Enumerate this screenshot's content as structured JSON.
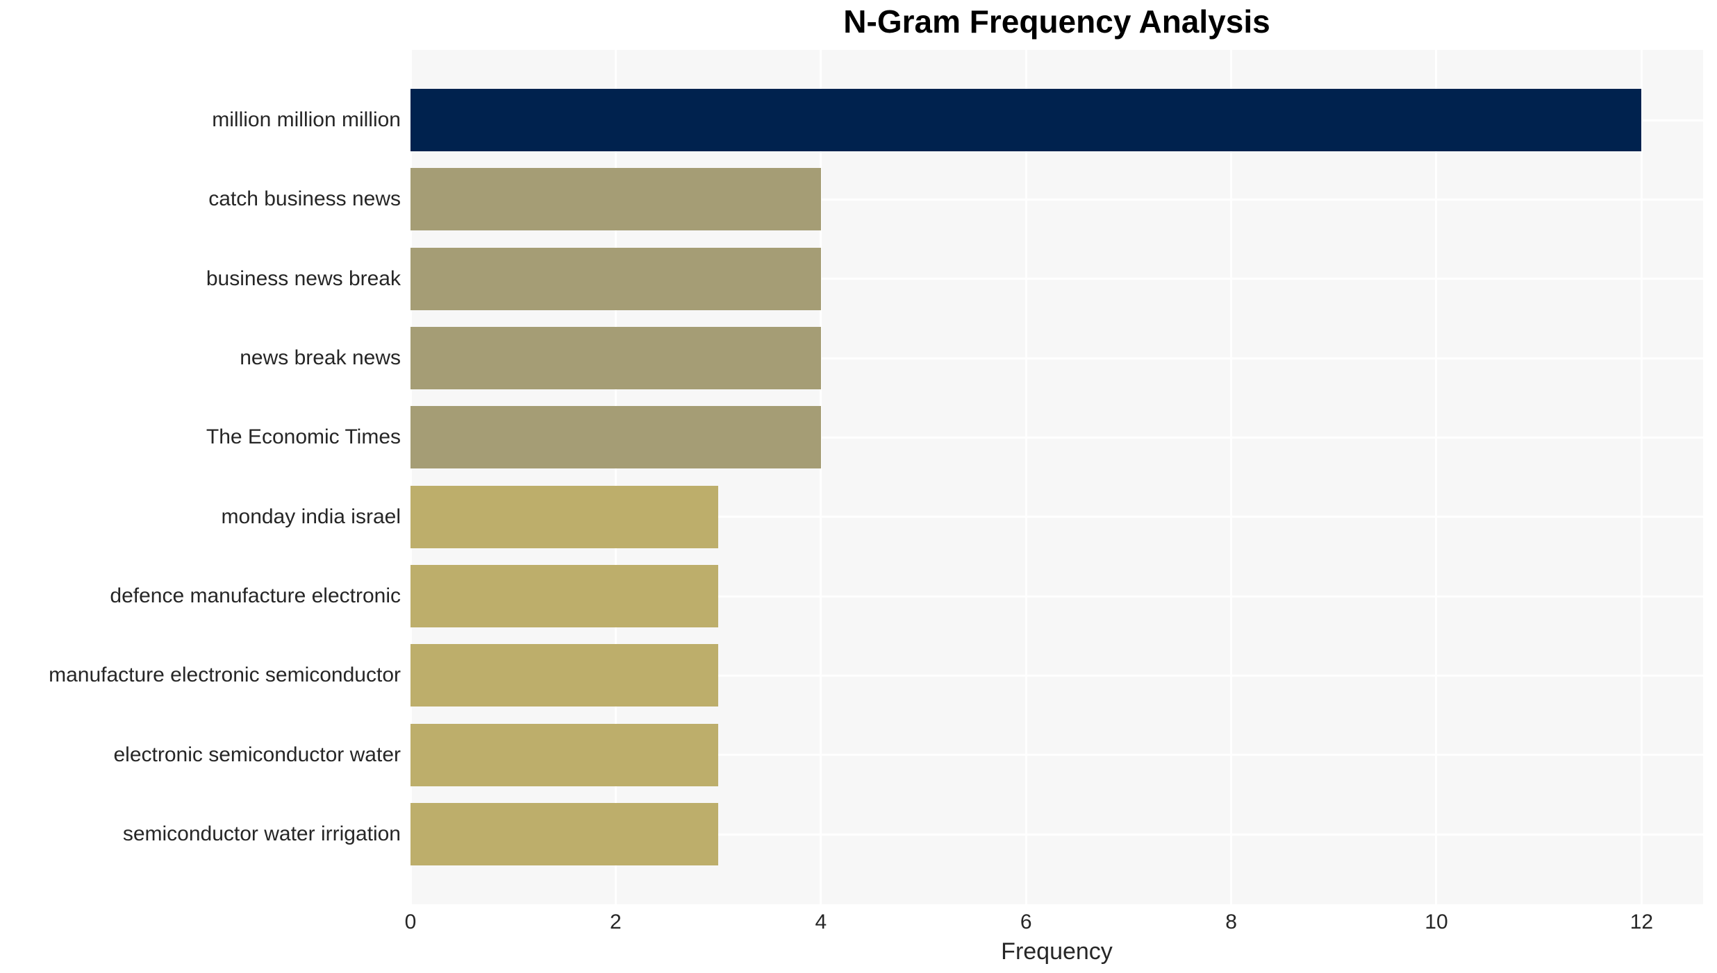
{
  "chart_data": {
    "type": "bar",
    "orientation": "horizontal",
    "title": "N-Gram Frequency Analysis",
    "xlabel": "Frequency",
    "ylabel": "",
    "categories": [
      "million million million",
      "catch business news",
      "business news break",
      "news break news",
      "The Economic Times",
      "monday india israel",
      "defence manufacture electronic",
      "manufacture electronic semiconductor",
      "electronic semiconductor water",
      "semiconductor water irrigation"
    ],
    "values": [
      12,
      4,
      4,
      4,
      4,
      3,
      3,
      3,
      3,
      3
    ],
    "bar_colors": [
      "#00224e",
      "#a59d75",
      "#a59d75",
      "#a59d75",
      "#a59d75",
      "#bdae6b",
      "#bdae6b",
      "#bdae6b",
      "#bdae6b",
      "#bdae6b"
    ],
    "xticks": [
      0,
      2,
      4,
      6,
      8,
      10,
      12
    ],
    "xlim": [
      0,
      12.6
    ],
    "grid": "on",
    "legend_position": "none",
    "colors": {
      "plot_background": "#f7f7f7",
      "gridline": "#ffffff",
      "axis_text": "#262626",
      "title_text": "#000000"
    }
  }
}
